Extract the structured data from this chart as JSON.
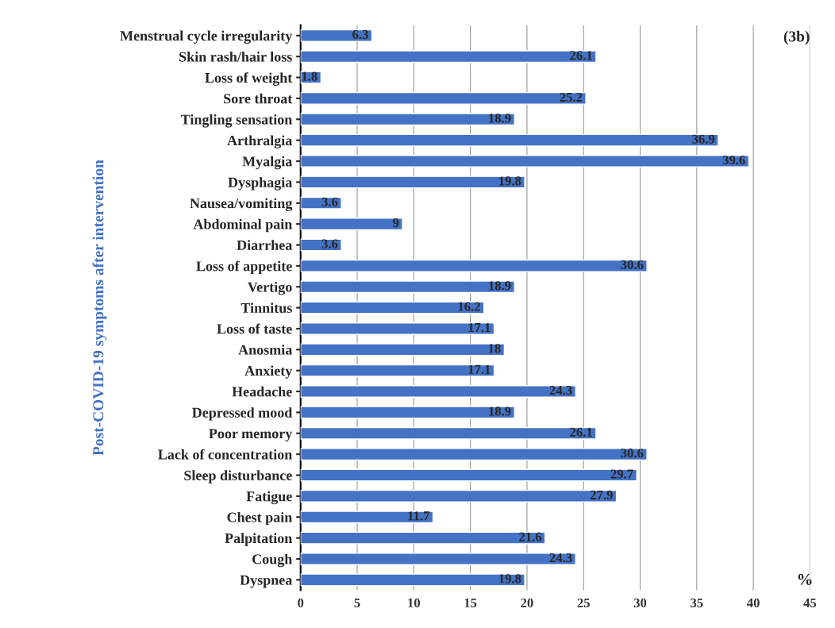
{
  "chart_data": {
    "type": "bar",
    "orientation": "horizontal",
    "ylabel": "Post-COVID-19 symptoms after intervention",
    "xlabel": "%",
    "categories": [
      "Menstrual cycle irregularity",
      "Skin rash/hair loss",
      "Loss of weight",
      "Sore throat",
      "Tingling sensation",
      "Arthralgia",
      "Myalgia",
      "Dysphagia",
      "Nausea/vomiting",
      "Abdominal pain",
      "Diarrhea",
      "Loss of appetite",
      "Vertigo",
      "Tinnitus",
      "Loss of taste",
      "Anosmia",
      "Anxiety",
      "Headache",
      "Depressed mood",
      "Poor memory",
      "Lack of concentration",
      "Sleep disturbance",
      "Fatigue",
      "Chest pain",
      "Palpitation",
      "Cough",
      "Dyspnea"
    ],
    "values": [
      6.3,
      26.1,
      1.8,
      25.2,
      18.9,
      36.9,
      39.6,
      19.8,
      3.6,
      9,
      3.6,
      30.6,
      18.9,
      16.2,
      17.1,
      18,
      17.1,
      24.3,
      18.9,
      26.1,
      30.6,
      29.7,
      27.9,
      11.7,
      21.6,
      24.3,
      19.8
    ],
    "color": "#4472c4",
    "data_labels": true,
    "xlim": [
      0,
      45
    ],
    "xticks": [
      0,
      5,
      10,
      15,
      20,
      25,
      30,
      35,
      40,
      45
    ],
    "grid": "x",
    "annotations": [
      "(3b)"
    ]
  }
}
